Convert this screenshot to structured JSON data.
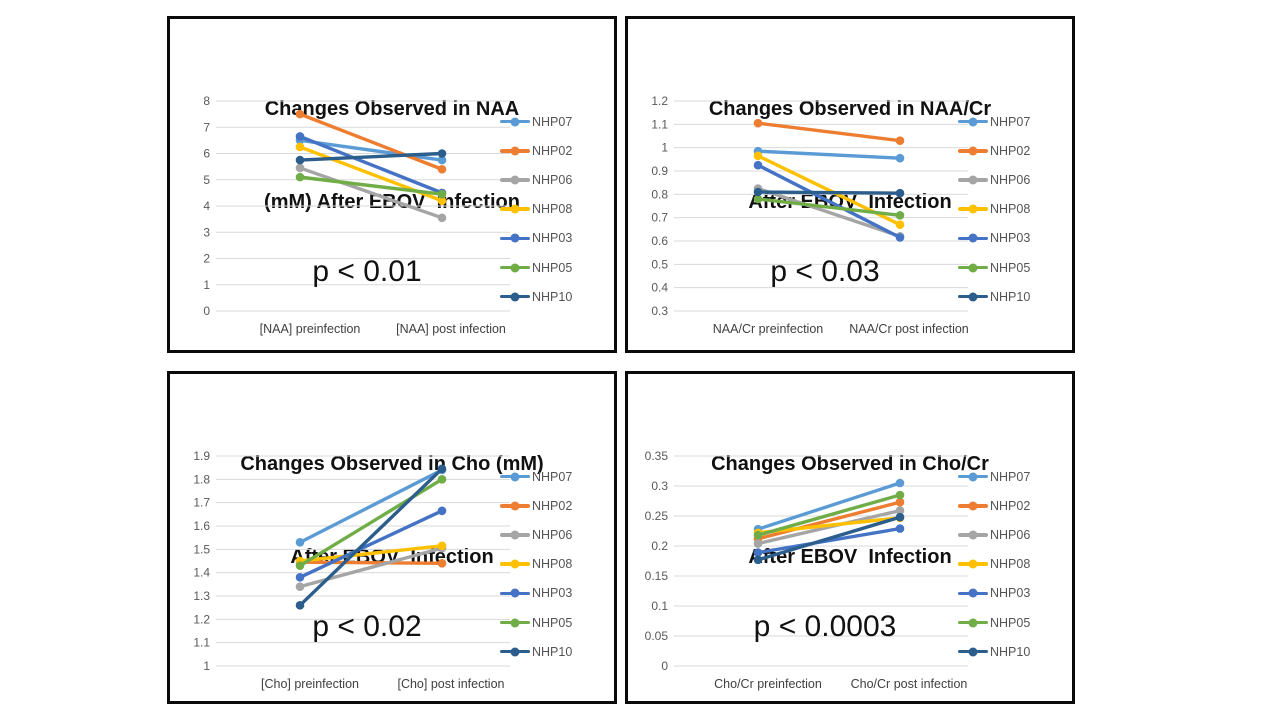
{
  "figure": {
    "background": "#ffffff",
    "panel_border_color": "#0a0a0a",
    "gridline_color": "#d9d9d9",
    "tick_label_color": "#595959",
    "axis_label_color": "#404040",
    "legend_label_color": "#545454"
  },
  "chart_data": [
    {
      "type": "line",
      "title_line1": "Changes Observed in NAA",
      "title_line2": "(mM) After EBOV  Infection",
      "annotation": "p < 0.01",
      "categories": [
        "[NAA] preinfection",
        "[NAA] post infection"
      ],
      "ylim": [
        0,
        8
      ],
      "ystep": 1,
      "yticks": [
        "0",
        "1",
        "2",
        "3",
        "4",
        "5",
        "6",
        "7",
        "8"
      ],
      "grid": true,
      "legend_position": "right",
      "series": [
        {
          "name": "NHP07",
          "color": "#5B9BD5",
          "values": [
            6.5,
            5.75
          ]
        },
        {
          "name": "NHP02",
          "color": "#ED7D31",
          "values": [
            7.5,
            5.4
          ]
        },
        {
          "name": "NHP06",
          "color": "#A5A5A5",
          "values": [
            5.45,
            3.55
          ]
        },
        {
          "name": "NHP08",
          "color": "#FFC000",
          "values": [
            6.25,
            4.2
          ]
        },
        {
          "name": "NHP03",
          "color": "#4472C4",
          "values": [
            6.65,
            4.5
          ]
        },
        {
          "name": "NHP05",
          "color": "#70AD47",
          "values": [
            5.1,
            4.45
          ]
        },
        {
          "name": "NHP10",
          "color": "#2B5E8C",
          "values": [
            5.75,
            6.0
          ]
        }
      ]
    },
    {
      "type": "line",
      "title_line1": "Changes Observed in NAA/Cr",
      "title_line2": "After EBOV  Infection",
      "annotation": "p < 0.03",
      "categories": [
        "NAA/Cr preinfection",
        "NAA/Cr post infection"
      ],
      "ylim": [
        0.3,
        1.2
      ],
      "ystep": 0.1,
      "yticks": [
        "0.3",
        "0.4",
        "0.5",
        "0.6",
        "0.7",
        "0.8",
        "0.9",
        "1",
        "1.1",
        "1.2"
      ],
      "grid": true,
      "legend_position": "right",
      "series": [
        {
          "name": "NHP07",
          "color": "#5B9BD5",
          "values": [
            0.985,
            0.955
          ]
        },
        {
          "name": "NHP02",
          "color": "#ED7D31",
          "values": [
            1.105,
            1.03
          ]
        },
        {
          "name": "NHP06",
          "color": "#A5A5A5",
          "values": [
            0.825,
            0.62
          ]
        },
        {
          "name": "NHP08",
          "color": "#FFC000",
          "values": [
            0.965,
            0.67
          ]
        },
        {
          "name": "NHP03",
          "color": "#4472C4",
          "values": [
            0.925,
            0.615
          ]
        },
        {
          "name": "NHP05",
          "color": "#70AD47",
          "values": [
            0.78,
            0.71
          ]
        },
        {
          "name": "NHP10",
          "color": "#2B5E8C",
          "values": [
            0.81,
            0.805
          ]
        }
      ]
    },
    {
      "type": "line",
      "title_line1": "Changes Observed in Cho (mM)",
      "title_line2": "After EBOV  Infection",
      "annotation": "p < 0.02",
      "categories": [
        "[Cho] preinfection",
        "[Cho] post infection"
      ],
      "ylim": [
        1,
        1.9
      ],
      "ystep": 0.1,
      "yticks": [
        "1",
        "1.1",
        "1.2",
        "1.3",
        "1.4",
        "1.5",
        "1.6",
        "1.7",
        "1.8",
        "1.9"
      ],
      "grid": true,
      "legend_position": "right",
      "series": [
        {
          "name": "NHP07",
          "color": "#5B9BD5",
          "values": [
            1.53,
            1.84
          ]
        },
        {
          "name": "NHP02",
          "color": "#ED7D31",
          "values": [
            1.445,
            1.44
          ]
        },
        {
          "name": "NHP06",
          "color": "#A5A5A5",
          "values": [
            1.34,
            1.505
          ]
        },
        {
          "name": "NHP08",
          "color": "#FFC000",
          "values": [
            1.45,
            1.515
          ]
        },
        {
          "name": "NHP03",
          "color": "#4472C4",
          "values": [
            1.38,
            1.665
          ]
        },
        {
          "name": "NHP05",
          "color": "#70AD47",
          "values": [
            1.43,
            1.8
          ]
        },
        {
          "name": "NHP10",
          "color": "#2B5E8C",
          "values": [
            1.26,
            1.845
          ]
        }
      ]
    },
    {
      "type": "line",
      "title_line1": "Changes Observed in Cho/Cr",
      "title_line2": "After EBOV  Infection",
      "annotation": "p < 0.0003",
      "categories": [
        "Cho/Cr preinfection",
        "Cho/Cr post infection"
      ],
      "ylim": [
        0,
        0.35
      ],
      "ystep": 0.05,
      "yticks": [
        "0",
        "0.05",
        "0.1",
        "0.15",
        "0.2",
        "0.25",
        "0.3",
        "0.35"
      ],
      "grid": true,
      "legend_position": "right",
      "series": [
        {
          "name": "NHP07",
          "color": "#5B9BD5",
          "values": [
            0.228,
            0.305
          ]
        },
        {
          "name": "NHP02",
          "color": "#ED7D31",
          "values": [
            0.212,
            0.273
          ]
        },
        {
          "name": "NHP06",
          "color": "#A5A5A5",
          "values": [
            0.204,
            0.259
          ]
        },
        {
          "name": "NHP08",
          "color": "#FFC000",
          "values": [
            0.222,
            0.247
          ]
        },
        {
          "name": "NHP03",
          "color": "#4472C4",
          "values": [
            0.189,
            0.229
          ]
        },
        {
          "name": "NHP05",
          "color": "#70AD47",
          "values": [
            0.218,
            0.285
          ]
        },
        {
          "name": "NHP10",
          "color": "#2B5E8C",
          "values": [
            0.177,
            0.248
          ]
        }
      ]
    }
  ]
}
